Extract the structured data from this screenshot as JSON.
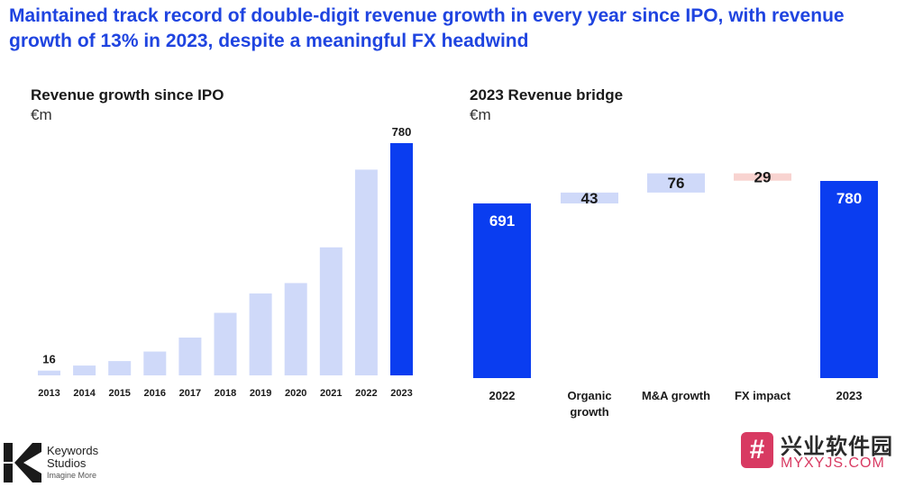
{
  "headline": "Maintained track record of double-digit revenue growth in every year since IPO, with revenue growth of 13% in 2023, despite a meaningful FX headwind",
  "left_chart": {
    "title": "Revenue growth since IPO",
    "unit": "€m"
  },
  "right_chart": {
    "title": "2023 Revenue bridge",
    "unit": "€m"
  },
  "colors": {
    "accent": "#0a3df0",
    "light": "#cfd9f9",
    "negative": "#f8d3d0",
    "headline": "#1f44e0"
  },
  "chart_data": [
    {
      "type": "bar",
      "title": "Revenue growth since IPO",
      "ylabel": "€m",
      "categories": [
        "2013",
        "2014",
        "2015",
        "2016",
        "2017",
        "2018",
        "2019",
        "2020",
        "2021",
        "2022",
        "2023"
      ],
      "values": [
        16,
        33,
        48,
        80,
        127,
        210,
        275,
        310,
        430,
        691,
        780
      ],
      "labels": {
        "2013": "16",
        "2023": "780"
      },
      "highlight": "2023",
      "ylim": [
        0,
        780
      ]
    },
    {
      "type": "waterfall",
      "title": "2023 Revenue bridge",
      "ylabel": "€m",
      "steps": [
        {
          "label": "2022",
          "value": 691,
          "kind": "total"
        },
        {
          "label": "Organic growth",
          "value": 43,
          "kind": "increase"
        },
        {
          "label": "M&A growth",
          "value": 76,
          "kind": "increase"
        },
        {
          "label": "FX impact",
          "value": -29,
          "kind": "decrease"
        },
        {
          "label": "2023",
          "value": 780,
          "kind": "total"
        }
      ]
    }
  ],
  "logo": {
    "line1": "Keywords",
    "line2": "Studios",
    "tagline": "Imagine More"
  },
  "watermark": {
    "glyph": "#",
    "text": "兴业软件园",
    "url": "MYXYJS.COM"
  }
}
